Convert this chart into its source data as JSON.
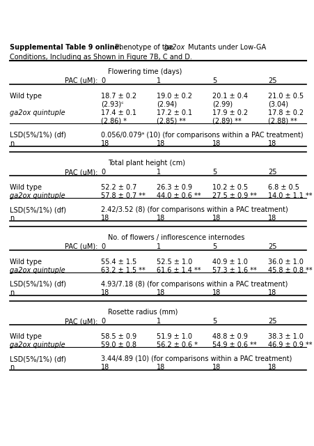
{
  "bg_color": "#ffffff",
  "text_color": "#000000",
  "font_size": 7.0,
  "title_bold": "Supplemental Table 9 online.",
  "title_normal": " Phenotype of the ",
  "title_italic": "ga2ox",
  "title_end": " Mutants under Low-GA",
  "subtitle": "Conditions, Including as Shown in Figure 7B, C and D.",
  "sections": [
    {
      "header": "Flowering time (days)",
      "pac_values": [
        "0",
        "1",
        "5",
        "25"
      ],
      "rows": [
        {
          "label": "Wild type",
          "label_italic": false,
          "line1": [
            "18.7 ± 0.2",
            "19.0 ± 0.2",
            "20.1 ± 0.4",
            "21.0 ± 0.5"
          ],
          "line2": [
            "(2.93)ᶜ",
            "(2.94)",
            "(2.99)",
            "(3.04)"
          ]
        },
        {
          "label": "ga2ox quintuple",
          "label_italic": true,
          "line1": [
            "17.4 ± 0.1",
            "17.2 ± 0.1",
            "17.9 ± 0.2",
            "17.8 ± 0.2"
          ],
          "line2": [
            "(2.86) *",
            "(2.85) **",
            "(2.89) **",
            "(2.88) **"
          ]
        }
      ],
      "lsd": "0.056/0.079ᵃ (10) (for comparisons within a PAC treatment)",
      "n": [
        "18",
        "18",
        "18",
        "18"
      ]
    },
    {
      "header": "Total plant height (cm)",
      "pac_values": [
        "0",
        "1",
        "5",
        "25"
      ],
      "rows": [
        {
          "label": "Wild type",
          "label_italic": false,
          "line1": [
            "52.2 ± 0.7",
            "26.3 ± 0.9",
            "10.2 ± 0.5",
            "6.8 ± 0.5"
          ],
          "line2": null
        },
        {
          "label": "ga2ox quintuple",
          "label_italic": true,
          "line1": [
            "57.8 ± 0.7 **",
            "44.0 ± 0.6 **",
            "27.5 ± 0.9 **",
            "14.0 ± 1.1 **"
          ],
          "line2": null
        }
      ],
      "lsd": "2.42/3.52 (8) (for comparisons within a PAC treatment)",
      "n": [
        "18",
        "18",
        "18",
        "18"
      ]
    },
    {
      "header": "No. of flowers / inflorescence internodes",
      "pac_values": [
        "0",
        "1",
        "5",
        "25"
      ],
      "rows": [
        {
          "label": "Wild type",
          "label_italic": false,
          "line1": [
            "55.4 ± 1.5",
            "52.5 ± 1.0",
            "40.9 ± 1.0",
            "36.0 ± 1.0"
          ],
          "line2": null
        },
        {
          "label": "ga2ox quintuple",
          "label_italic": true,
          "line1": [
            "63.2 ± 1.5 **",
            "61.6 ± 1.4 **",
            "57.3 ± 1.6 **",
            "45.8 ± 0.8 **"
          ],
          "line2": null
        }
      ],
      "lsd": "4.93/7.18 (8) (for comparisons within a PAC treatment)",
      "n": [
        "18",
        "18",
        "18",
        "18"
      ]
    },
    {
      "header": "Rosette radius (mm)",
      "pac_values": [
        "0",
        "1",
        "5",
        "25"
      ],
      "rows": [
        {
          "label": "Wild type",
          "label_italic": false,
          "line1": [
            "58.5 ± 0.9",
            "51.9 ± 1.0",
            "48.8 ± 0.9",
            "38.3 ± 1.0"
          ],
          "line2": null
        },
        {
          "label": "ga2ox quintuple",
          "label_italic": true,
          "line1": [
            "59.0 ± 0.8",
            "56.2 ± 0.6 *",
            "54.9 ± 0.6 **",
            "46.9 ± 0.9 **"
          ],
          "line2": null
        }
      ],
      "lsd": "3.44/4.89 (10) (for comparisons within a PAC treatment)",
      "n": [
        "18",
        "18",
        "18",
        "18"
      ]
    }
  ]
}
